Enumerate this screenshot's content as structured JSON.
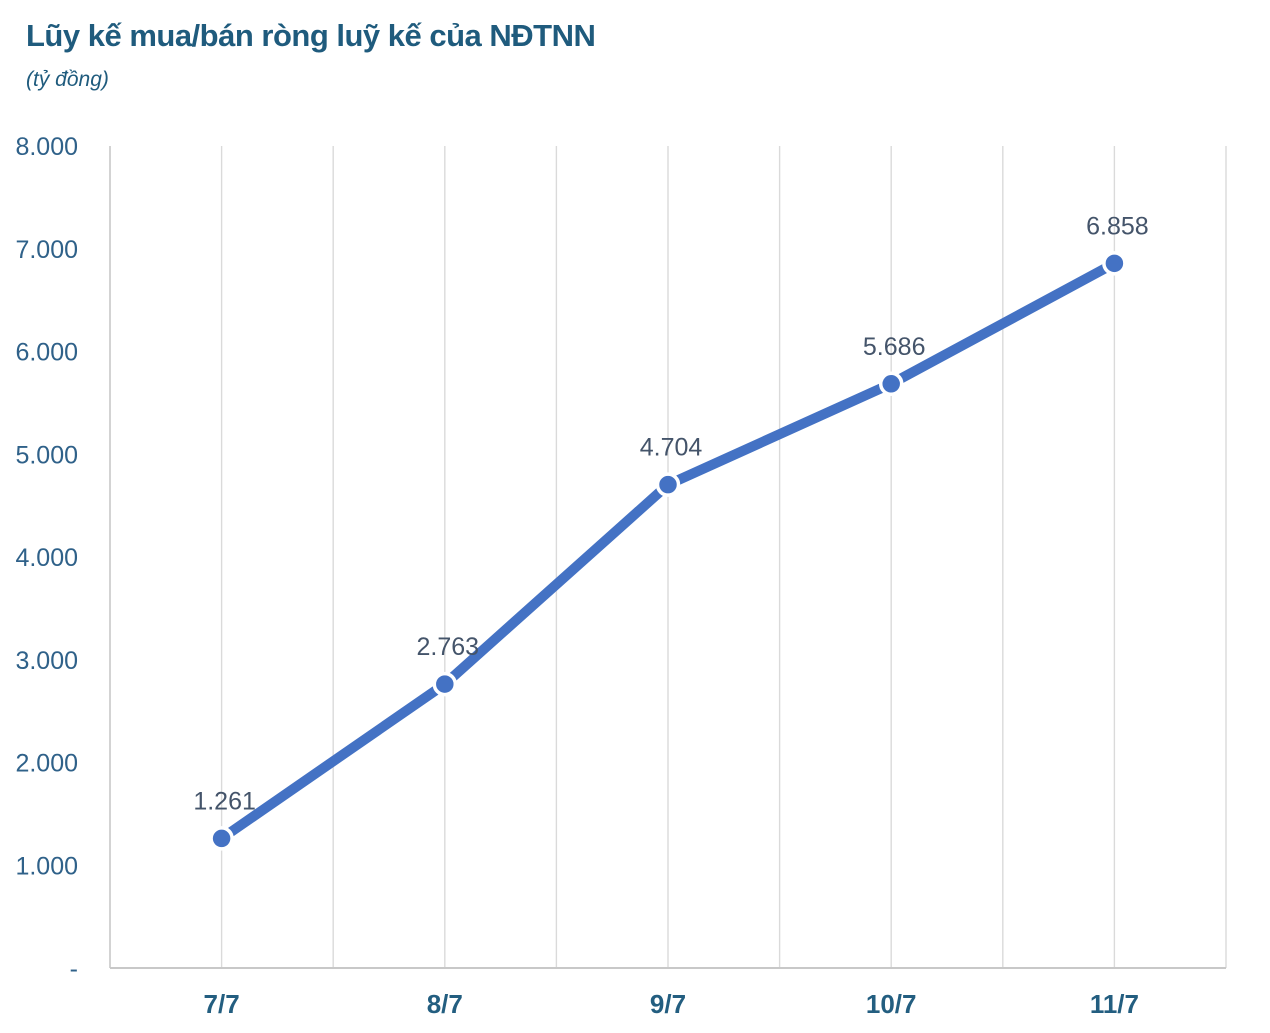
{
  "chart_data": {
    "type": "line",
    "title": "Lũy kế mua/bán ròng luỹ kế của NĐTNN",
    "subtitle": "(tỷ đồng)",
    "categories": [
      "7/7",
      "8/7",
      "9/7",
      "10/7",
      "11/7"
    ],
    "series": [
      {
        "name": "Lũy kế mua/bán ròng của NĐTNN",
        "values": [
          1261,
          2763,
          4704,
          5686,
          6858
        ],
        "point_labels": [
          "1.261",
          "2.763",
          "4.704",
          "5.686",
          "6.858"
        ]
      }
    ],
    "xlabel": "",
    "ylabel": "",
    "ylim": [
      0,
      8000
    ],
    "yticks": [
      {
        "value": 0,
        "label": "-"
      },
      {
        "value": 1000,
        "label": "1.000"
      },
      {
        "value": 2000,
        "label": "2.000"
      },
      {
        "value": 3000,
        "label": "3.000"
      },
      {
        "value": 4000,
        "label": "4.000"
      },
      {
        "value": 5000,
        "label": "5.000"
      },
      {
        "value": 6000,
        "label": "6.000"
      },
      {
        "value": 7000,
        "label": "7.000"
      },
      {
        "value": 8000,
        "label": "8.000"
      }
    ],
    "grid": "vertical-only",
    "vertical_gridlines_per_category": 2,
    "legend": "none",
    "colors": {
      "line": "#4472C4",
      "marker_fill": "#4472C4",
      "marker_ring": "#ffffff",
      "title": "#1F5B7D",
      "subtitle": "#1F5B7D",
      "ytick_label": "#2F6189",
      "xtick_label": "#235E80",
      "point_label": "#44546A",
      "gridline": "#DADADA",
      "axis_line": "#C8C8C8"
    }
  }
}
